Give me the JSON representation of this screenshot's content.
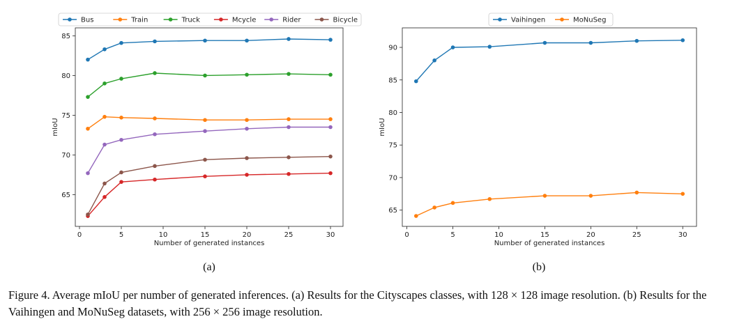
{
  "chart_data": [
    {
      "type": "line",
      "title": "",
      "xlabel": "Number of generated instances",
      "ylabel": "mIoU",
      "x": [
        1,
        3,
        5,
        9,
        15,
        20,
        25,
        30
      ],
      "xticks": [
        0,
        5,
        10,
        15,
        20,
        25,
        30
      ],
      "yticks": [
        65,
        70,
        75,
        80,
        85
      ],
      "xlim": [
        -0.5,
        31.5
      ],
      "ylim": [
        61.0,
        86.0
      ],
      "legend_position": "top",
      "series": [
        {
          "name": "Bus",
          "color": "#1f77b4",
          "values": [
            82.0,
            83.3,
            84.1,
            84.3,
            84.4,
            84.4,
            84.6,
            84.5
          ]
        },
        {
          "name": "Train",
          "color": "#ff7f0e",
          "values": [
            73.3,
            74.8,
            74.7,
            74.6,
            74.4,
            74.4,
            74.5,
            74.5
          ]
        },
        {
          "name": "Truck",
          "color": "#2ca02c",
          "values": [
            77.3,
            79.0,
            79.6,
            80.3,
            80.0,
            80.1,
            80.2,
            80.1
          ]
        },
        {
          "name": "Mcycle",
          "color": "#d62728",
          "values": [
            62.3,
            64.7,
            66.6,
            66.9,
            67.3,
            67.5,
            67.6,
            67.7
          ]
        },
        {
          "name": "Rider",
          "color": "#9467bd",
          "values": [
            67.7,
            71.3,
            71.9,
            72.6,
            73.0,
            73.3,
            73.5,
            73.5
          ]
        },
        {
          "name": "Bicycle",
          "color": "#8c564b",
          "values": [
            62.5,
            66.4,
            67.8,
            68.6,
            69.4,
            69.6,
            69.7,
            69.8
          ]
        }
      ]
    },
    {
      "type": "line",
      "title": "",
      "xlabel": "Number of generated instances",
      "ylabel": "mIoU",
      "x": [
        1,
        3,
        5,
        9,
        15,
        20,
        25,
        30
      ],
      "xticks": [
        0,
        5,
        10,
        15,
        20,
        25,
        30
      ],
      "yticks": [
        65,
        70,
        75,
        80,
        85,
        90
      ],
      "xlim": [
        -0.5,
        31.5
      ],
      "ylim": [
        62.5,
        93.0
      ],
      "legend_position": "top",
      "series": [
        {
          "name": "Vaihingen",
          "color": "#1f77b4",
          "values": [
            84.8,
            88.0,
            90.0,
            90.1,
            90.7,
            90.7,
            91.0,
            91.1
          ]
        },
        {
          "name": "MoNuSeg",
          "color": "#ff7f0e",
          "values": [
            64.1,
            65.4,
            66.1,
            66.7,
            67.2,
            67.2,
            67.7,
            67.5
          ]
        }
      ]
    }
  ],
  "subcaptions": [
    "(a)",
    "(b)"
  ],
  "caption": "Figure 4. Average mIoU per number of generated inferences. (a) Results for the Cityscapes classes, with 128 × 128 image resolution. (b) Results for the Vaihingen and MoNuSeg datasets, with 256 × 256 image resolution."
}
